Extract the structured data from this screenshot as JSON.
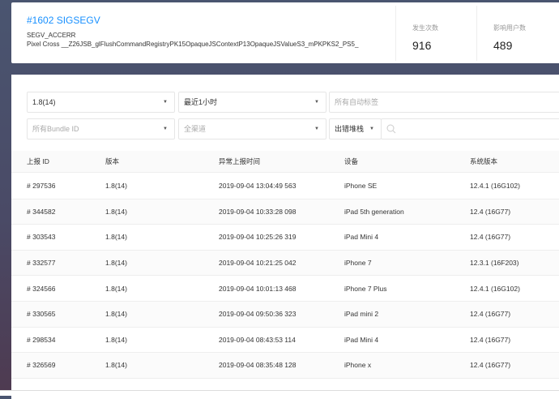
{
  "issue": {
    "title": "#1602 SIGSEGV",
    "type": "SEGV_ACCERR",
    "stack": "Pixel Cross __Z26JSB_glFlushCommandRegistryPK15OpaqueJSContextP13OpaqueJSValueS3_mPKPKS2_PS5_"
  },
  "stats": [
    {
      "label": "发生次数",
      "value": "916"
    },
    {
      "label": "影响用户数",
      "value": "489"
    }
  ],
  "filters": {
    "version": "1.8(14)",
    "time": "最近1小时",
    "tags_placeholder": "所有自动标签",
    "bundle_placeholder": "所有Bundle ID",
    "channel_placeholder": "全渠道",
    "search_type": "出错堆栈",
    "caret": "▼"
  },
  "table": {
    "headers": [
      "上报 ID",
      "版本",
      "异常上报时间",
      "设备",
      "系统版本"
    ],
    "rows": [
      [
        "# 297536",
        "1.8(14)",
        "2019-09-04 13:04:49 563",
        "iPhone SE",
        "12.4.1 (16G102)"
      ],
      [
        "# 344582",
        "1.8(14)",
        "2019-09-04 10:33:28 098",
        "iPad 5th generation",
        "12.4 (16G77)"
      ],
      [
        "# 303543",
        "1.8(14)",
        "2019-09-04 10:25:26 319",
        "iPad Mini 4",
        "12.4 (16G77)"
      ],
      [
        "# 332577",
        "1.8(14)",
        "2019-09-04 10:21:25 042",
        "iPhone 7",
        "12.3.1 (16F203)"
      ],
      [
        "# 324566",
        "1.8(14)",
        "2019-09-04 10:01:13 468",
        "iPhone 7 Plus",
        "12.4.1 (16G102)"
      ],
      [
        "# 330565",
        "1.8(14)",
        "2019-09-04 09:50:36 323",
        "iPad mini 2",
        "12.4 (16G77)"
      ],
      [
        "# 298534",
        "1.8(14)",
        "2019-09-04 08:43:53 114",
        "iPad Mini 4",
        "12.4 (16G77)"
      ],
      [
        "# 326569",
        "1.8(14)",
        "2019-09-04 08:35:48 128",
        "iPhone x",
        "12.4 (16G77)"
      ]
    ]
  }
}
